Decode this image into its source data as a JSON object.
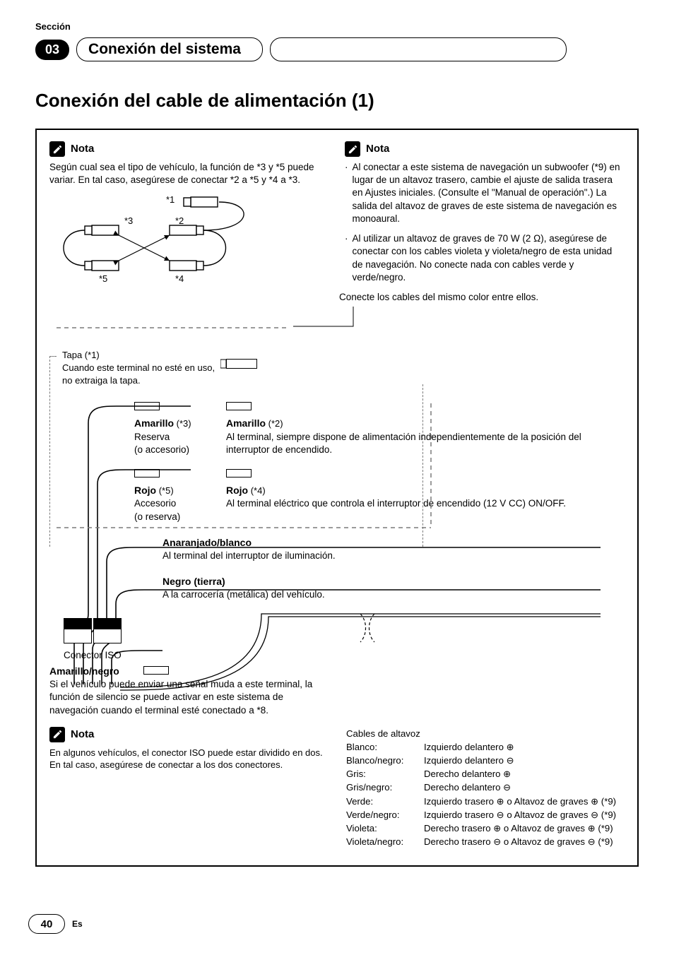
{
  "header": {
    "section_label": "Sección",
    "section_number": "03",
    "chapter_title": "Conexión del sistema"
  },
  "page_title": "Conexión del cable de alimentación (1)",
  "nota_label": "Nota",
  "nota_left": "Según cual sea el tipo de vehículo, la función de *3 y *5 puede variar. En tal caso, asegúrese de conectar *2 a *5 y *4 a *3.",
  "nota_right_1": "Al conectar a este sistema de navegación un subwoofer (*9) en lugar de un altavoz trasero, cambie el ajuste de salida trasera en Ajustes iniciales. (Consulte el \"Manual de operación\".) La salida del altavoz de graves de este sistema de navegación es monoaural.",
  "nota_right_2": "Al utilizar un altavoz de graves de 70 W (2 Ω), asegúrese de conectar con los cables violeta y violeta/negro de esta unidad de navegación. No conecte nada con cables verde y verde/negro.",
  "diagram_labels": {
    "m1": "*1",
    "m2": "*2",
    "m3": "*3",
    "m4": "*4",
    "m5": "*5",
    "connect_same": "Conecte los cables del mismo color entre ellos.",
    "tapa_title": "Tapa (*1)",
    "tapa_body": "Cuando este terminal no esté en uso, no extraiga la tapa."
  },
  "wires": {
    "amarillo3": {
      "title": "Amarillo",
      "suffix": " (*3)",
      "l1": "Reserva",
      "l2": "(o accesorio)"
    },
    "amarillo2": {
      "title": "Amarillo",
      "suffix": " (*2)",
      "body": "Al terminal, siempre dispone de alimentación independientemente de la posición del interruptor de encendido."
    },
    "rojo5": {
      "title": "Rojo",
      "suffix": " (*5)",
      "l1": "Accesorio",
      "l2": "(o reserva)"
    },
    "rojo4": {
      "title": "Rojo",
      "suffix": " (*4)",
      "body": "Al terminal eléctrico que controla el interruptor de encendido (12 V CC) ON/OFF."
    },
    "naranja": {
      "title": "Anaranjado/blanco",
      "body": "Al terminal del interruptor de iluminación."
    },
    "negro": {
      "title": "Negro (tierra)",
      "body": "A la carrocería (metálica) del vehículo."
    },
    "iso_label": "Conector ISO",
    "amneg": {
      "title": "Amarillo/negro",
      "body": "Si el vehículo puede enviar una señal muda a este terminal, la función de silencio se puede activar en este sistema de navegación cuando el terminal esté conectado a *8."
    }
  },
  "nota_iso": "En algunos vehículos, el conector ISO puede estar dividido en dos. En tal caso, asegúrese de conectar a los dos conectores.",
  "speakers": {
    "header": "Cables de altavoz",
    "rows": [
      {
        "c": "Blanco:",
        "d": "Izquierdo delantero ⊕"
      },
      {
        "c": "Blanco/negro:",
        "d": "Izquierdo delantero ⊖"
      },
      {
        "c": "Gris:",
        "d": "Derecho delantero ⊕"
      },
      {
        "c": "Gris/negro:",
        "d": "Derecho delantero ⊖"
      },
      {
        "c": "Verde:",
        "d": "Izquierdo trasero ⊕ o Altavoz de graves ⊕ (*9)"
      },
      {
        "c": "Verde/negro:",
        "d": "Izquierdo trasero ⊖ o Altavoz de graves ⊖ (*9)"
      },
      {
        "c": "Violeta:",
        "d": "Derecho trasero ⊕ o Altavoz de graves ⊕ (*9)"
      },
      {
        "c": "Violeta/negro:",
        "d": "Derecho trasero ⊖ o Altavoz de graves ⊖ (*9)"
      }
    ]
  },
  "footer": {
    "page": "40",
    "lang": "Es"
  },
  "colors": {
    "text": "#000000",
    "bg": "#ffffff",
    "dash": "#7a7a7a"
  }
}
